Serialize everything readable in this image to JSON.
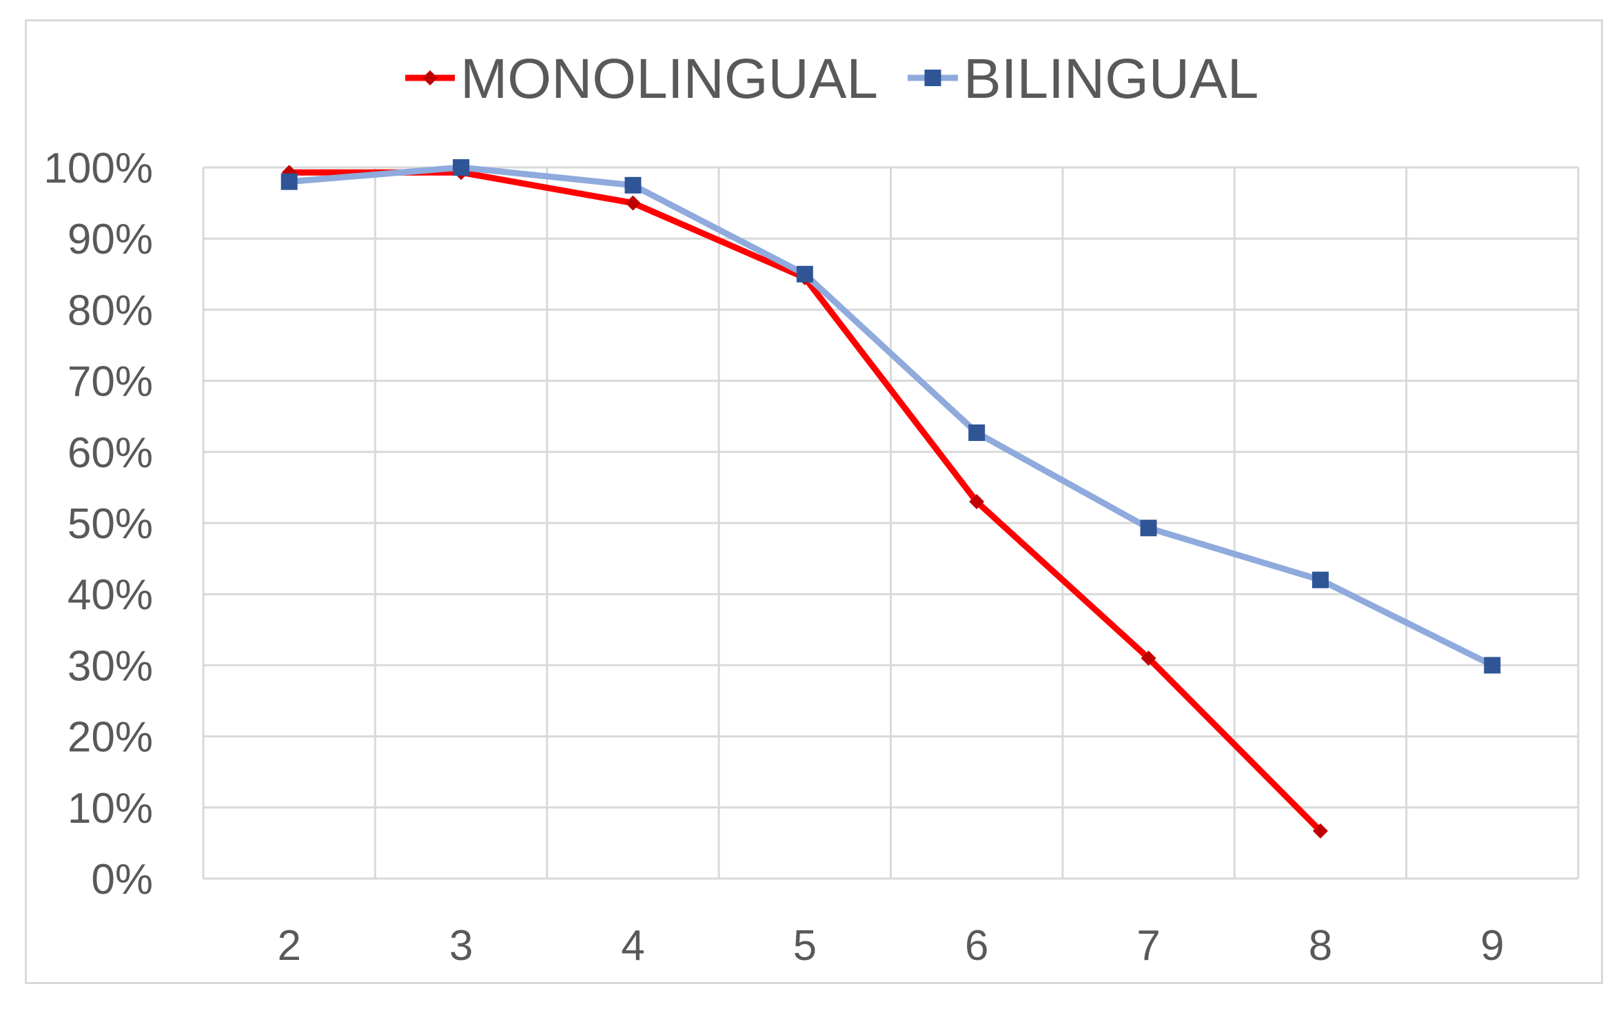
{
  "chart_data": {
    "type": "line",
    "title": "",
    "xlabel": "",
    "ylabel": "",
    "x": [
      2,
      3,
      4,
      5,
      6,
      7,
      8,
      9
    ],
    "x_tick_labels": [
      "2",
      "3",
      "4",
      "5",
      "6",
      "7",
      "8",
      "9"
    ],
    "y_tick_labels": [
      "0%",
      "10%",
      "20%",
      "30%",
      "40%",
      "50%",
      "60%",
      "70%",
      "80%",
      "90%",
      "100%"
    ],
    "ylim": [
      0,
      100
    ],
    "grid": true,
    "legend_position": "top",
    "series": [
      {
        "name": "MONOLINGUAL",
        "color": "#ff0000",
        "marker_color": "#c00000",
        "marker": "diamond",
        "x": [
          2,
          3,
          4,
          5,
          6,
          7,
          8
        ],
        "values": [
          99.3,
          99.3,
          95,
          84.5,
          53,
          31,
          6.7
        ]
      },
      {
        "name": "BILINGUAL",
        "color": "#8faadc",
        "marker_color": "#2f5597",
        "marker": "square",
        "x": [
          2,
          3,
          4,
          5,
          6,
          7,
          8,
          9
        ],
        "values": [
          98,
          100,
          97.5,
          85,
          62.7,
          49.3,
          42,
          30
        ]
      }
    ]
  }
}
